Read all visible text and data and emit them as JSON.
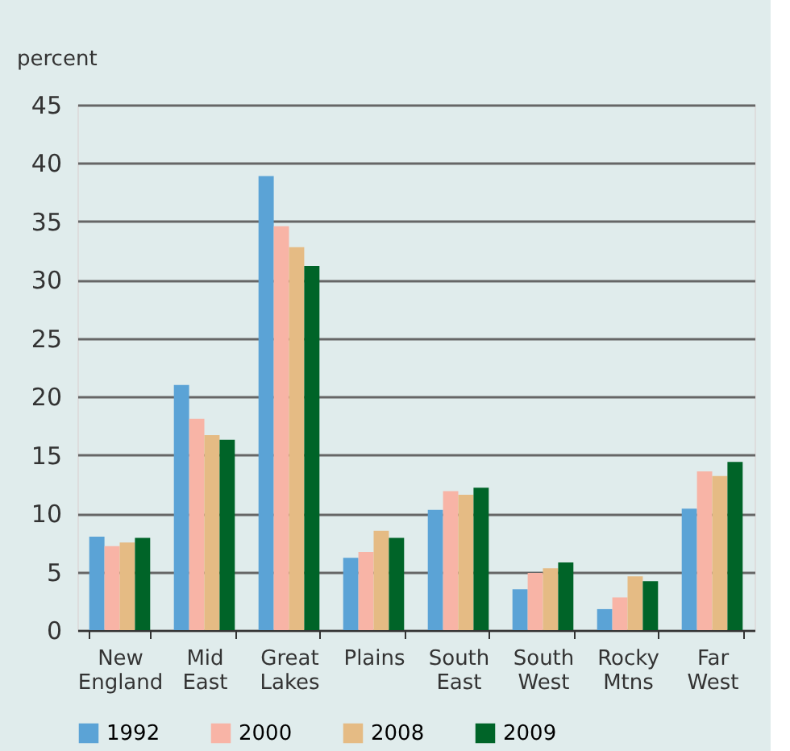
{
  "chart_data": {
    "type": "bar",
    "ylabel": "percent",
    "categories": [
      "New England",
      "Mid East",
      "Great Lakes",
      "Plains",
      "South East",
      "South West",
      "Rocky Mtns",
      "Far West"
    ],
    "series": [
      {
        "name": "1992",
        "color": "#5ba3d6",
        "values": [
          8.0,
          21.0,
          38.9,
          6.2,
          10.3,
          3.5,
          1.8,
          10.4
        ]
      },
      {
        "name": "2000",
        "color": "#f8b4a6",
        "values": [
          7.2,
          18.1,
          34.6,
          6.7,
          11.9,
          4.9,
          2.8,
          13.6
        ]
      },
      {
        "name": "2008",
        "color": "#e5bb84",
        "values": [
          7.5,
          16.7,
          32.8,
          8.5,
          11.6,
          5.3,
          4.6,
          13.2
        ]
      },
      {
        "name": "2009",
        "color": "#006428",
        "values": [
          7.9,
          16.3,
          31.2,
          7.9,
          12.2,
          5.8,
          4.2,
          14.4
        ]
      }
    ],
    "ylim": [
      0,
      45
    ],
    "yticks": [
      0,
      5,
      10,
      15,
      20,
      25,
      30,
      35,
      40,
      45
    ],
    "grid": "y",
    "legend": "bottom"
  }
}
